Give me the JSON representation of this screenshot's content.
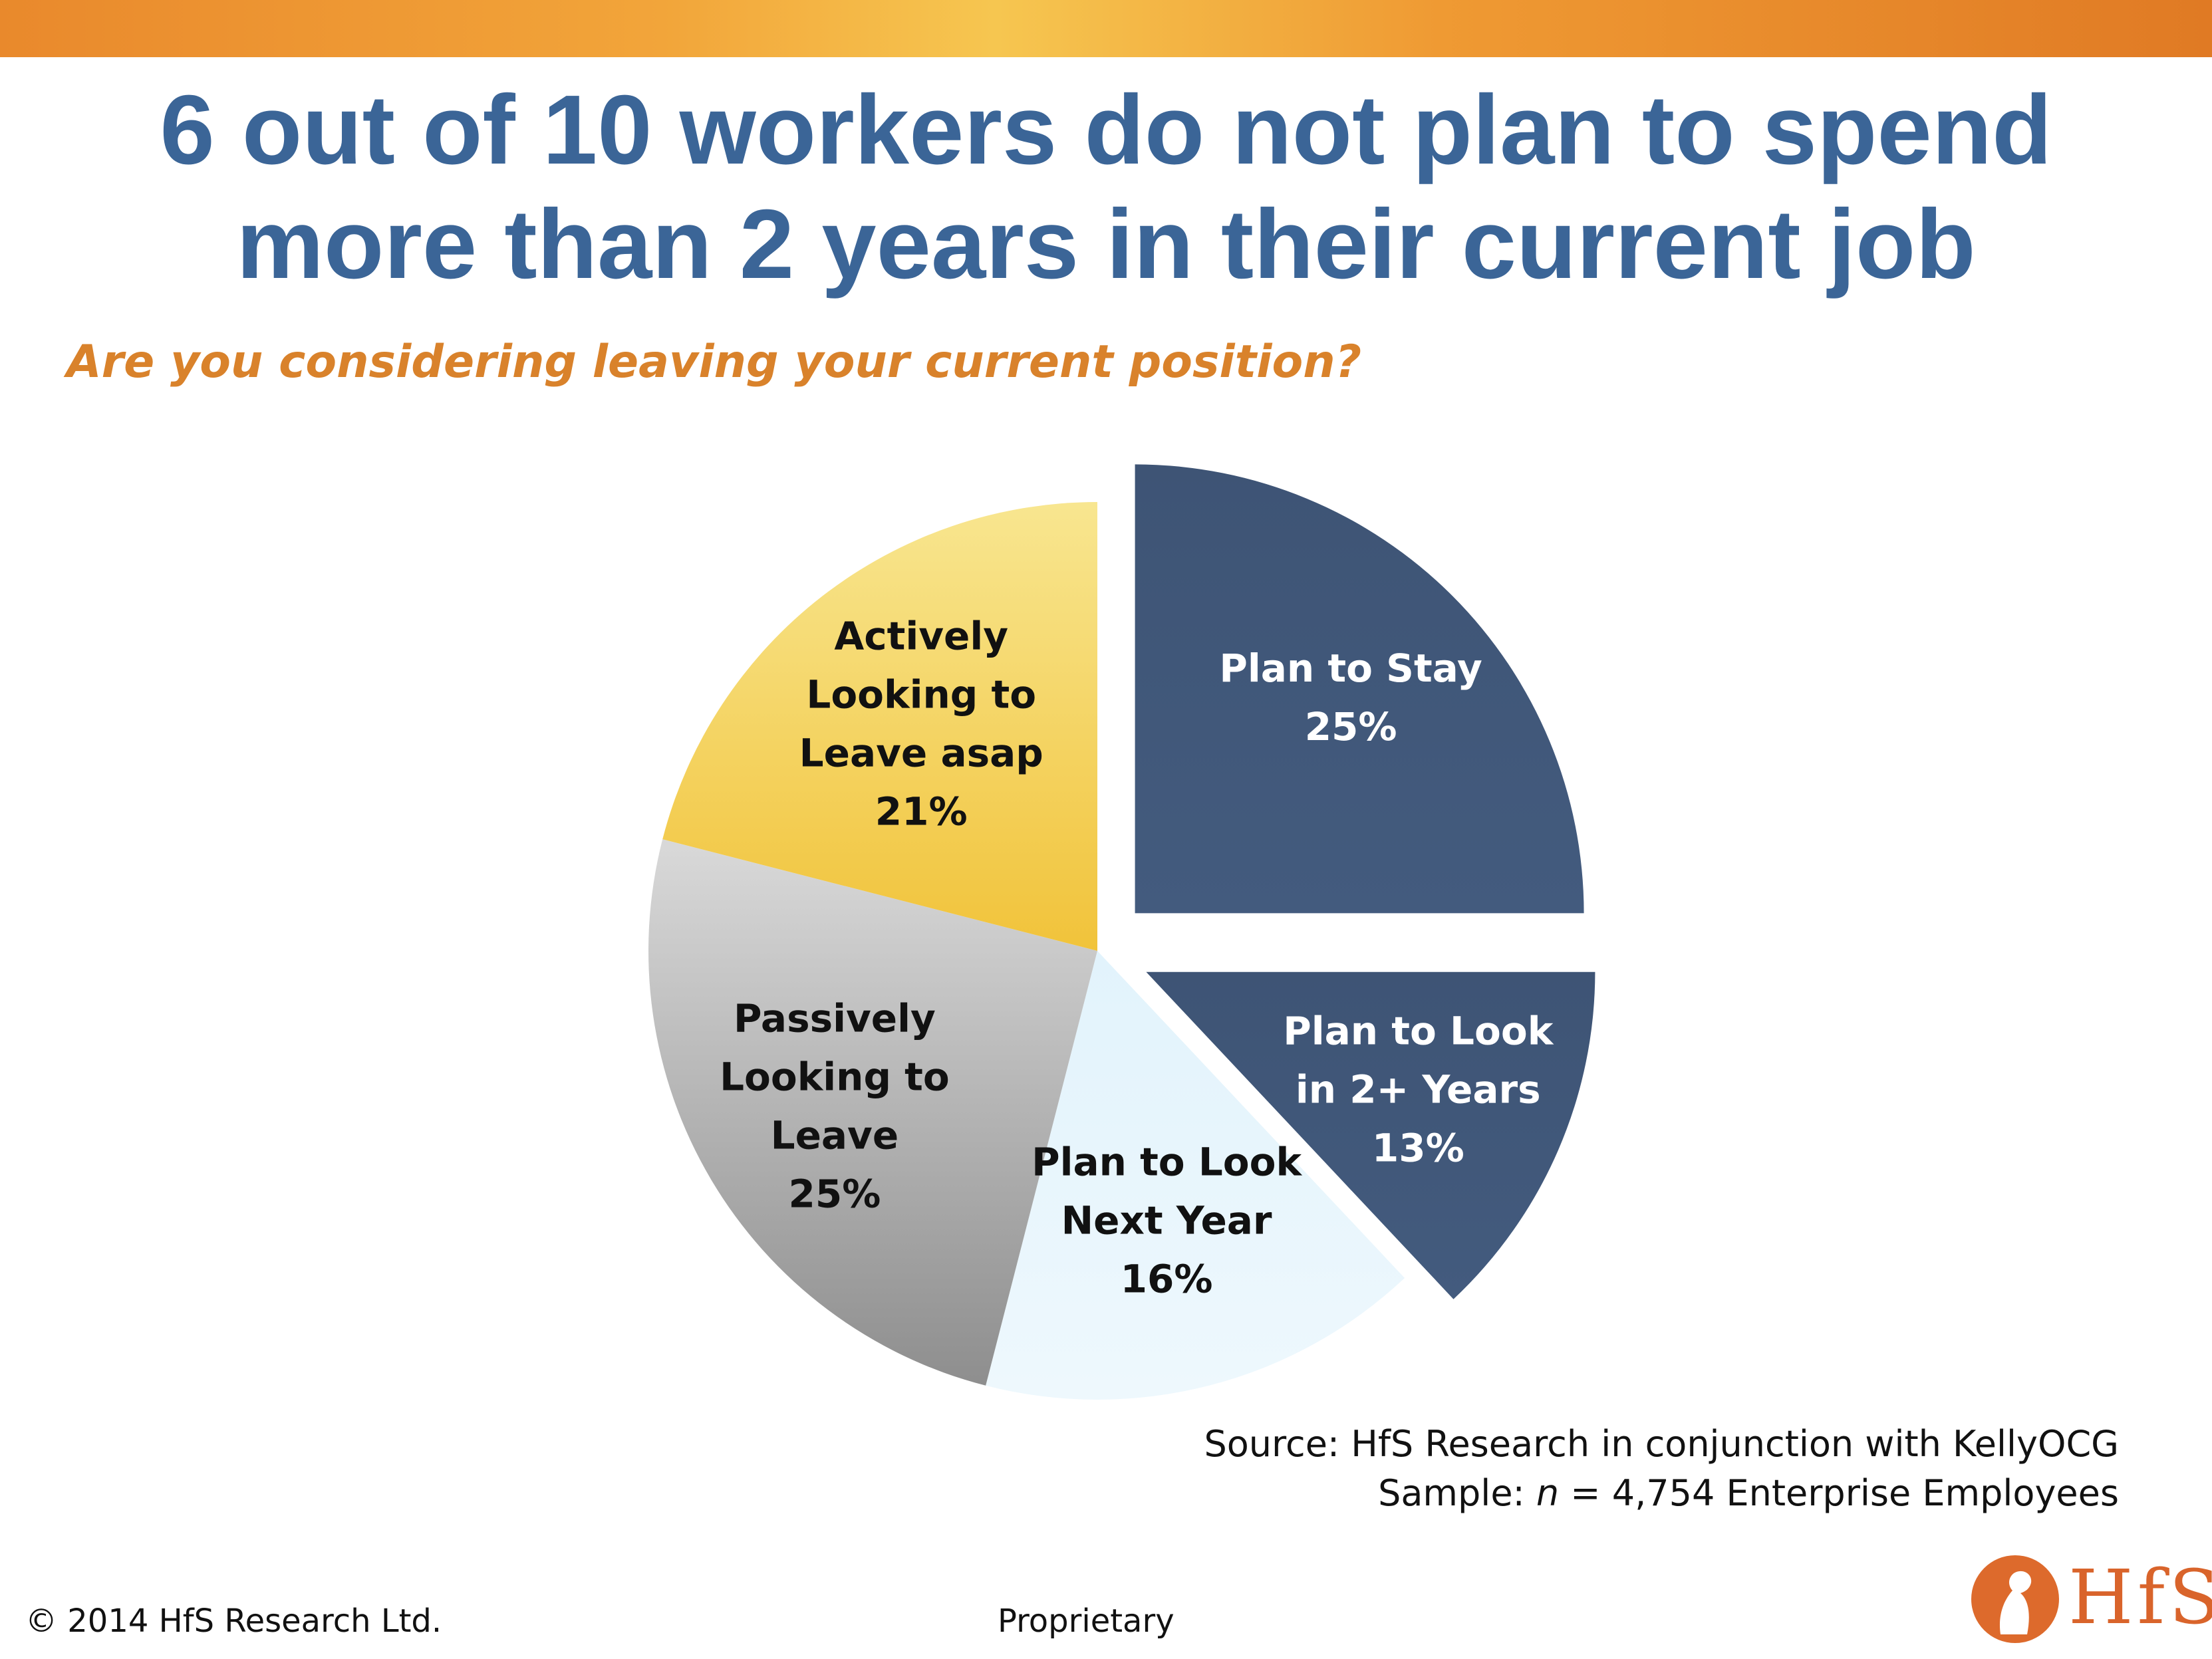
{
  "header": {
    "title_line1": "6 out of 10 workers do not plan to spend",
    "title_line2": "more than 2 years in their current job",
    "subtitle": "Are you considering leaving your current position?"
  },
  "colors": {
    "title": "#3b6597",
    "subtitle": "#d9822b",
    "dark_slice": "#41587a",
    "light_slice": "#e7f4fb",
    "gray_slice": "#b5b5b5",
    "yellow_slice": "#f3cd4f"
  },
  "chart_data": {
    "type": "pie",
    "title": "",
    "slices": [
      {
        "label_lines": [
          "Plan to Stay"
        ],
        "value_label": "25%",
        "value": 25,
        "exploded": true,
        "color": "#41587a",
        "text_color": "#ffffff"
      },
      {
        "label_lines": [
          "Plan to Look",
          "in 2+ Years"
        ],
        "value_label": "13%",
        "value": 13,
        "exploded": true,
        "color": "#41587a",
        "text_color": "#ffffff"
      },
      {
        "label_lines": [
          "Plan to Look",
          "Next Year"
        ],
        "value_label": "16%",
        "value": 16,
        "exploded": false,
        "color": "#e7f4fb",
        "text_color": "#111111"
      },
      {
        "label_lines": [
          "Passively",
          "Looking to",
          "Leave"
        ],
        "value_label": "25%",
        "value": 25,
        "exploded": false,
        "color": "#b5b5b5",
        "text_color": "#111111"
      },
      {
        "label_lines": [
          "Actively",
          "Looking to",
          "Leave asap"
        ],
        "value_label": "21%",
        "value": 21,
        "exploded": false,
        "color": "#f3cd4f",
        "text_color": "#111111"
      }
    ]
  },
  "source": {
    "line1": "Source:  HfS Research in conjunction with KellyOCG",
    "line2_prefix": "Sample:  ",
    "line2_n": "n",
    "line2_rest": " = 4,754 Enterprise Employees"
  },
  "footer": {
    "copyright": "© 2014 HfS Research Ltd.",
    "proprietary": "Proprietary"
  },
  "logo": {
    "text": "HfS",
    "icon": "hfs-logo-icon"
  }
}
